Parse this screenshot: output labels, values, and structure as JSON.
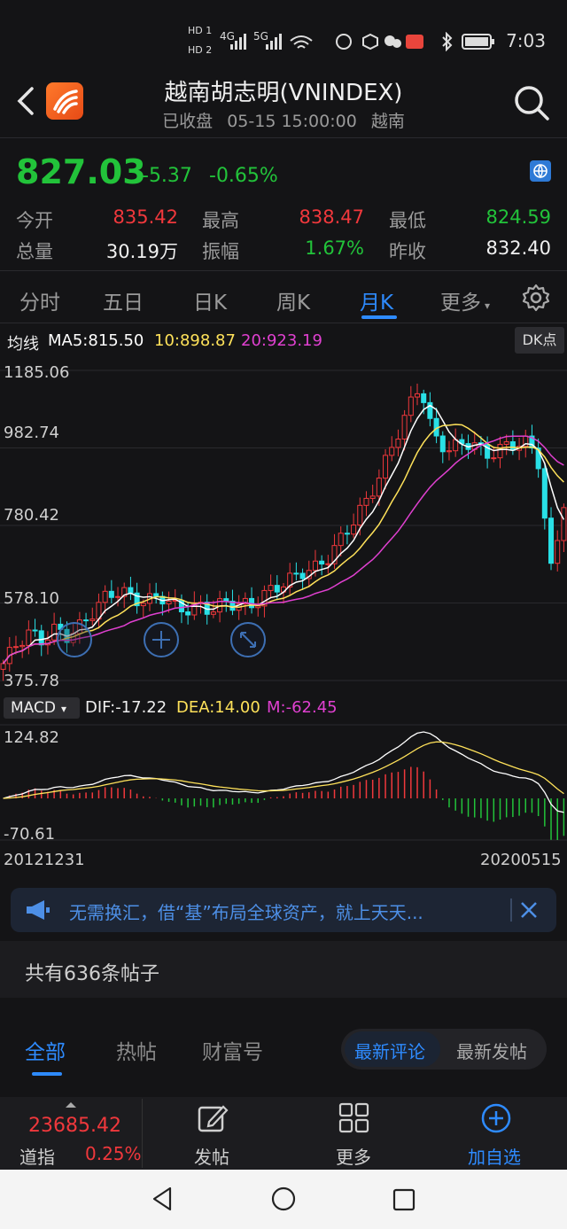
{
  "status": {
    "time": "7:03",
    "net1": "4G",
    "net2": "5G",
    "hd1": "HD 1",
    "hd2": "HD 2"
  },
  "header": {
    "title": "越南胡志明(VNINDEX)",
    "status": "已收盘",
    "datetime": "05-15 15:00:00",
    "market": "越南"
  },
  "quote": {
    "price": "827.03",
    "change": "-5.37",
    "change_pct": "-0.65%",
    "open_label": "今开",
    "open": "835.42",
    "high_label": "最高",
    "high": "838.47",
    "low_label": "最低",
    "low": "824.59",
    "volume_label": "总量",
    "volume": "30.19万",
    "amplitude_label": "振幅",
    "amplitude": "1.67%",
    "prev_close_label": "昨收",
    "prev_close": "832.40"
  },
  "tabs": [
    "分时",
    "五日",
    "日K",
    "周K",
    "月K",
    "更多"
  ],
  "active_tab": "月K",
  "chart": {
    "ma_label": "均线",
    "ma5": "MA5:815.50",
    "ma10": "10:898.87",
    "ma20": "20:923.19",
    "dk_label": "DK点",
    "y_labels": [
      "1185.06",
      "982.74",
      "780.42",
      "578.10",
      "375.78"
    ],
    "macd_label": "MACD",
    "dif": "DIF:-17.22",
    "dea": "DEA:14.00",
    "m": "M:-62.45",
    "macd_y_labels": [
      "124.82",
      "-70.61"
    ],
    "start_date": "20121231",
    "end_date": "20200515"
  },
  "chart_data": {
    "type": "candlestick",
    "ylim": [
      375.78,
      1185.06
    ],
    "title": "",
    "x_range": [
      "20121231",
      "20200515"
    ],
    "macd_ylim": [
      -70.61,
      124.82
    ],
    "close_approx": [
      420,
      470,
      500,
      480,
      510,
      490,
      520,
      560,
      600,
      610,
      590,
      580,
      600,
      570,
      560,
      570,
      560,
      580,
      575,
      570,
      600,
      620,
      640,
      660,
      670,
      700,
      750,
      800,
      850,
      920,
      1000,
      1080,
      1150,
      1010,
      980,
      990,
      1000,
      960,
      980,
      990,
      1000,
      960,
      660,
      827.03
    ]
  },
  "banner": {
    "text": "无需换汇，借“基”布局全球资产，就上天天..."
  },
  "posts": {
    "count_text": "共有636条帖子"
  },
  "sub_tabs": [
    "全部",
    "热帖",
    "财富号"
  ],
  "pill": {
    "newest_comment": "最新评论",
    "newest_post": "最新发帖"
  },
  "bottom": {
    "index_value": "23685.42",
    "index_name": "道指",
    "index_pct": "0.25%",
    "post": "发帖",
    "more": "更多",
    "add": "加自选"
  },
  "colors": {
    "up": "#f0383c",
    "down": "#22c33a",
    "accent": "#2e8bff",
    "ma5": "#ffffff",
    "ma10": "#ffe25a",
    "ma20": "#e040d0"
  }
}
